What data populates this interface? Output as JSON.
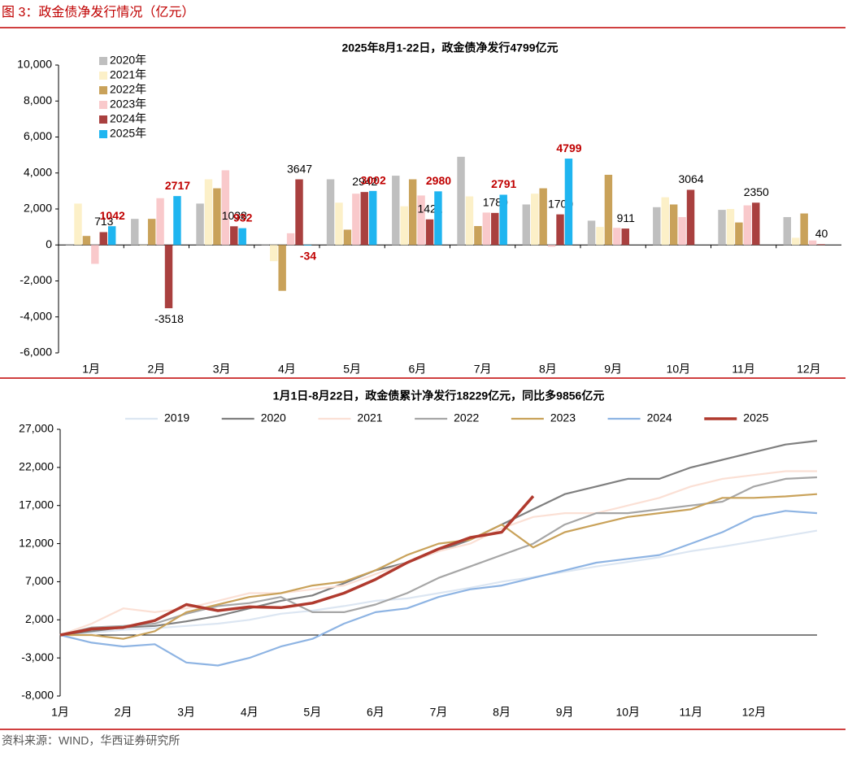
{
  "header": {
    "title": "图 3：政金债净发行情况（亿元）"
  },
  "source": "资料来源：WIND，华西证券研究所",
  "chart_data": [
    {
      "type": "bar",
      "title": "2025年8月1-22日，政金债净发行4799亿元",
      "categories": [
        "1月",
        "2月",
        "3月",
        "4月",
        "5月",
        "6月",
        "7月",
        "8月",
        "9月",
        "10月",
        "11月",
        "12月"
      ],
      "series": [
        {
          "name": "2020年",
          "color": "#bfbfbf",
          "values": [
            0,
            1450,
            2300,
            50,
            3650,
            3850,
            4900,
            2250,
            1350,
            2100,
            1950,
            1550
          ]
        },
        {
          "name": "2021年",
          "color": "#fcf0c8",
          "values": [
            2300,
            0,
            3650,
            -900,
            2350,
            2150,
            2700,
            2850,
            1000,
            2650,
            2000,
            400
          ]
        },
        {
          "name": "2022年",
          "color": "#c9a25a",
          "values": [
            500,
            1450,
            3150,
            -2550,
            850,
            3650,
            1050,
            3150,
            3900,
            2250,
            1250,
            1750
          ]
        },
        {
          "name": "2023年",
          "color": "#f9c9cb",
          "values": [
            -1050,
            2600,
            4150,
            650,
            2850,
            2750,
            1800,
            -100,
            950,
            1550,
            2200,
            250
          ]
        },
        {
          "name": "2024年",
          "color": "#a9403f",
          "values": [
            713,
            -3518,
            1038,
            3647,
            2942,
            1421,
            1780,
            1700,
            911,
            3064,
            2350,
            40
          ],
          "data_labels": true,
          "label_color": "#000000"
        },
        {
          "name": "2025年",
          "color": "#1fb5f0",
          "values": [
            1042,
            2717,
            932,
            -34,
            3002,
            2980,
            2791,
            4799,
            null,
            null,
            null,
            null
          ],
          "data_labels": true,
          "label_color": "#c00000"
        }
      ],
      "ylim": [
        -6000,
        10000
      ],
      "yticks": [
        {
          "value": -6000,
          "label": "-6,000"
        },
        {
          "value": -4000,
          "label": "-4,000"
        },
        {
          "value": -2000,
          "label": "-2,000"
        },
        0,
        {
          "value": 2000,
          "label": "2,000"
        },
        {
          "value": 4000,
          "label": "4,000"
        },
        {
          "value": 6000,
          "label": "6,000"
        },
        {
          "value": 8000,
          "label": "8,000"
        },
        {
          "value": 10000,
          "label": "10,000"
        }
      ],
      "grid": false,
      "legend": "top-left"
    },
    {
      "type": "line",
      "title": "1月1日-8月22日，政金债累计净发行18229亿元，同比多9856亿元",
      "categories": [
        "1月",
        null,
        "2月",
        null,
        "3月",
        null,
        "4月",
        null,
        "5月",
        null,
        "6月",
        null,
        "7月",
        null,
        "8月",
        null,
        "9月",
        null,
        "10月",
        null,
        "11月",
        null,
        "12月",
        null,
        null
      ],
      "series": [
        {
          "name": "2019",
          "color": "#dce6f2",
          "values": [
            0,
            300,
            700,
            900,
            1200,
            1500,
            2000,
            2800,
            3200,
            3800,
            4500,
            4800,
            5500,
            6200,
            7000,
            7600,
            8300,
            9000,
            9600,
            10200,
            11000,
            11600,
            12300,
            13000,
            13700
          ]
        },
        {
          "name": "2020",
          "color": "#7f7f7f",
          "values": [
            0,
            500,
            1000,
            1200,
            1800,
            2500,
            3500,
            4500,
            5200,
            6800,
            8500,
            9500,
            11000,
            12500,
            14500,
            16500,
            18500,
            19500,
            20500,
            20500,
            22000,
            23000,
            24000,
            25000,
            25500
          ]
        },
        {
          "name": "2021",
          "color": "#fbe0d5",
          "values": [
            0,
            1500,
            3500,
            3000,
            3500,
            4500,
            5500,
            5500,
            6000,
            6500,
            8000,
            9500,
            11000,
            12000,
            14000,
            15500,
            16000,
            16000,
            17000,
            18000,
            19500,
            20500,
            21000,
            21500,
            21500
          ]
        },
        {
          "name": "2022",
          "color": "#a6a6a6",
          "values": [
            0,
            1000,
            1200,
            1500,
            2800,
            3800,
            4200,
            5000,
            3000,
            3000,
            4000,
            5500,
            7500,
            9000,
            10500,
            12000,
            14500,
            16000,
            16000,
            16500,
            17000,
            17500,
            19500,
            20500,
            20700
          ]
        },
        {
          "name": "2023",
          "color": "#c9a25a",
          "values": [
            0,
            0,
            -500,
            500,
            3000,
            4000,
            5000,
            5500,
            6500,
            7000,
            8500,
            10500,
            12000,
            12500,
            14500,
            11500,
            13500,
            14500,
            15500,
            16000,
            16500,
            18000,
            18000,
            18200,
            18500
          ]
        },
        {
          "name": "2024",
          "color": "#8eb4e3",
          "values": [
            0,
            -1000,
            -1500,
            -1200,
            -3600,
            -4000,
            -3000,
            -1500,
            -500,
            1500,
            3000,
            3500,
            5000,
            6000,
            6500,
            7500,
            8500,
            9500,
            10000,
            10500,
            12000,
            13500,
            15500,
            16300,
            16000
          ]
        },
        {
          "name": "2025",
          "color": "#b03a2e",
          "values": [
            0,
            800,
            1000,
            1900,
            4000,
            3200,
            3700,
            3600,
            4200,
            5500,
            7300,
            9500,
            11300,
            12800,
            13500,
            18229,
            null,
            null,
            null,
            null,
            null,
            null,
            null,
            null,
            null
          ]
        }
      ],
      "ylim": [
        -8000,
        27000
      ],
      "yticks": [
        {
          "value": -8000,
          "label": "-8,000"
        },
        {
          "value": -3000,
          "label": "-3,000"
        },
        {
          "value": 2000,
          "label": "2,000"
        },
        {
          "value": 7000,
          "label": "7,000"
        },
        {
          "value": 12000,
          "label": "12,000"
        },
        {
          "value": 17000,
          "label": "17,000"
        },
        {
          "value": 22000,
          "label": "22,000"
        },
        {
          "value": 27000,
          "label": "27,000"
        }
      ],
      "grid": false,
      "legend": "top"
    }
  ]
}
